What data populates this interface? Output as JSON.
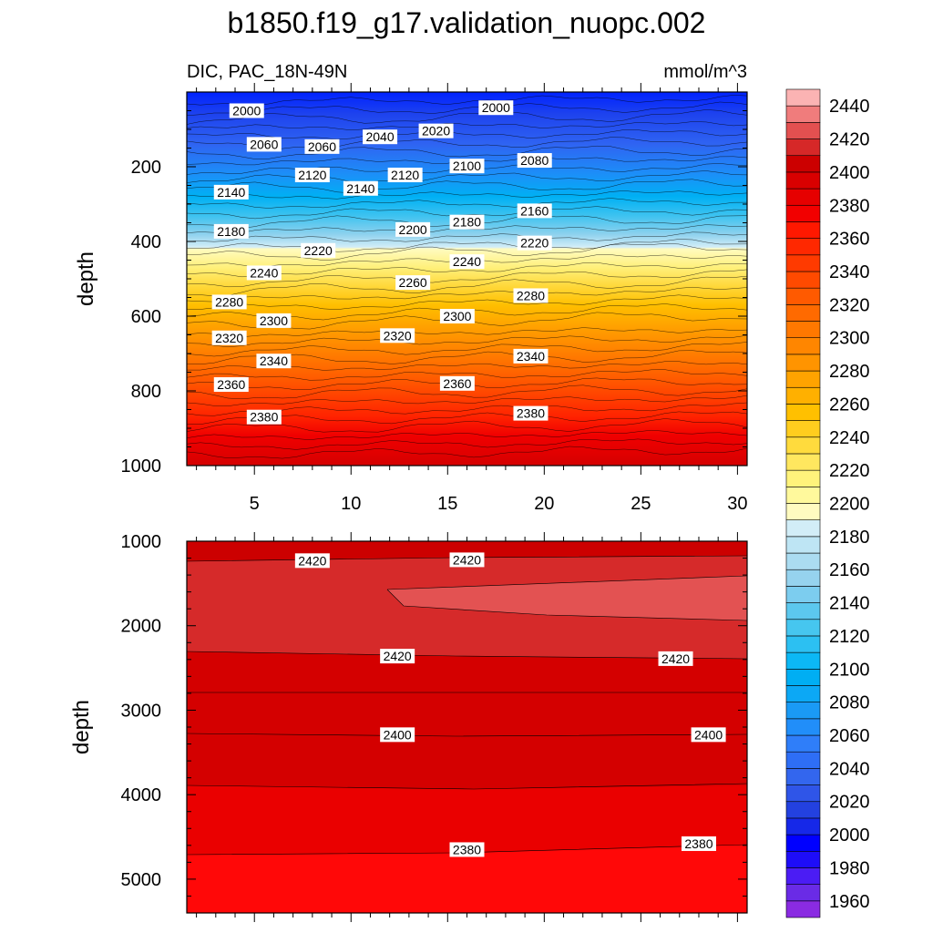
{
  "chart_data": {
    "type": "contour",
    "title": "b1850.f19_g17.validation_nuopc.002",
    "subtitle_left": "DIC, PAC_18N-49N",
    "units": "mmol/m^3",
    "colorbar": {
      "levels": [
        1960,
        1970,
        1980,
        1990,
        2000,
        2010,
        2020,
        2030,
        2040,
        2050,
        2060,
        2070,
        2080,
        2090,
        2100,
        2110,
        2120,
        2130,
        2140,
        2150,
        2160,
        2170,
        2180,
        2190,
        2200,
        2210,
        2220,
        2230,
        2240,
        2250,
        2260,
        2270,
        2280,
        2290,
        2300,
        2310,
        2320,
        2330,
        2340,
        2350,
        2360,
        2370,
        2380,
        2390,
        2400,
        2410,
        2420,
        2430,
        2440
      ],
      "tick_labels": [
        "1960",
        "1980",
        "2000",
        "2020",
        "2040",
        "2060",
        "2080",
        "2100",
        "2120",
        "2140",
        "2160",
        "2180",
        "2200",
        "2220",
        "2240",
        "2260",
        "2280",
        "2300",
        "2320",
        "2340",
        "2360",
        "2380",
        "2400",
        "2420",
        "2440"
      ],
      "colors": [
        "#8a2be2",
        "#6a2be6",
        "#4b1cf4",
        "#1e0df8",
        "#0000ff",
        "#1628e8",
        "#2341e0",
        "#2f55e8",
        "#3366ee",
        "#2e6ef5",
        "#2f7ef9",
        "#218ef9",
        "#1a9af5",
        "#0ca8f5",
        "#00aef3",
        "#0cb8f5",
        "#2cc0f2",
        "#46c6ef",
        "#5cc8ee",
        "#7ccdef",
        "#96d3ee",
        "#abdcf1",
        "#bee5f4",
        "#d2edf7",
        "#fffbc0",
        "#fff99c",
        "#fff37b",
        "#ffe75f",
        "#ffdb3d",
        "#ffcd1e",
        "#ffc000",
        "#ffb000",
        "#ffa300",
        "#ff9400",
        "#ff8600",
        "#ff7800",
        "#ff6a00",
        "#ff5a00",
        "#ff4a00",
        "#ff3a00",
        "#ff2800",
        "#ff1800",
        "#f20000",
        "#e60000",
        "#d90000",
        "#cc0000",
        "#d62828",
        "#e35050",
        "#f07c7c",
        "#fbb3b3"
      ]
    },
    "x": {
      "ticks": [
        5,
        10,
        15,
        20,
        25,
        30
      ],
      "tick_labels": [
        "5",
        "10",
        "15",
        "20",
        "25",
        "30"
      ],
      "range": [
        1.5,
        30.5
      ]
    },
    "upper_panel": {
      "ylabel": "depth",
      "ylim": [
        0,
        1000
      ],
      "y_inverted": true,
      "yticks": [
        200,
        400,
        600,
        800,
        1000
      ],
      "ytick_labels": [
        "200",
        "400",
        "600",
        "800",
        "1000"
      ],
      "contour_labels": [
        {
          "text": "2000",
          "x": 4.6,
          "y": 50
        },
        {
          "text": "2000",
          "x": 17.5,
          "y": 42
        },
        {
          "text": "2060",
          "x": 5.5,
          "y": 140
        },
        {
          "text": "2060",
          "x": 8.5,
          "y": 146
        },
        {
          "text": "2040",
          "x": 11.5,
          "y": 120
        },
        {
          "text": "2020",
          "x": 14.4,
          "y": 104
        },
        {
          "text": "2080",
          "x": 19.5,
          "y": 183
        },
        {
          "text": "2100",
          "x": 16.0,
          "y": 198
        },
        {
          "text": "2120",
          "x": 8.0,
          "y": 222
        },
        {
          "text": "2120",
          "x": 12.8,
          "y": 222
        },
        {
          "text": "2140",
          "x": 3.8,
          "y": 268
        },
        {
          "text": "2140",
          "x": 10.5,
          "y": 258
        },
        {
          "text": "2160",
          "x": 19.5,
          "y": 318
        },
        {
          "text": "2180",
          "x": 3.8,
          "y": 373
        },
        {
          "text": "2180",
          "x": 16.0,
          "y": 348
        },
        {
          "text": "2200",
          "x": 13.2,
          "y": 368
        },
        {
          "text": "2220",
          "x": 8.3,
          "y": 424
        },
        {
          "text": "2220",
          "x": 19.5,
          "y": 404
        },
        {
          "text": "2240",
          "x": 5.5,
          "y": 484
        },
        {
          "text": "2240",
          "x": 16.0,
          "y": 454
        },
        {
          "text": "2260",
          "x": 13.2,
          "y": 510
        },
        {
          "text": "2280",
          "x": 3.7,
          "y": 562
        },
        {
          "text": "2280",
          "x": 19.3,
          "y": 545
        },
        {
          "text": "2300",
          "x": 6.0,
          "y": 612
        },
        {
          "text": "2300",
          "x": 15.5,
          "y": 600
        },
        {
          "text": "2320",
          "x": 3.7,
          "y": 658
        },
        {
          "text": "2320",
          "x": 12.4,
          "y": 652
        },
        {
          "text": "2340",
          "x": 6.0,
          "y": 720
        },
        {
          "text": "2340",
          "x": 19.3,
          "y": 707
        },
        {
          "text": "2360",
          "x": 3.8,
          "y": 783
        },
        {
          "text": "2360",
          "x": 15.5,
          "y": 780
        },
        {
          "text": "2380",
          "x": 5.5,
          "y": 870
        },
        {
          "text": "2380",
          "x": 19.3,
          "y": 860
        }
      ]
    },
    "lower_panel": {
      "ylabel": "depth",
      "ylim": [
        1000,
        5400
      ],
      "y_inverted": true,
      "yticks": [
        1000,
        2000,
        3000,
        4000,
        5000
      ],
      "ytick_labels": [
        "1000",
        "2000",
        "3000",
        "4000",
        "5000"
      ],
      "contour_labels": [
        {
          "text": "2420",
          "x": 8.0,
          "y": 1230
        },
        {
          "text": "2420",
          "x": 16.0,
          "y": 1220
        },
        {
          "text": "2420",
          "x": 12.4,
          "y": 2360
        },
        {
          "text": "2420",
          "x": 26.8,
          "y": 2390
        },
        {
          "text": "2400",
          "x": 12.4,
          "y": 3290
        },
        {
          "text": "2400",
          "x": 28.5,
          "y": 3290
        },
        {
          "text": "2380",
          "x": 16.0,
          "y": 4650
        },
        {
          "text": "2380",
          "x": 28.0,
          "y": 4580
        }
      ]
    }
  }
}
